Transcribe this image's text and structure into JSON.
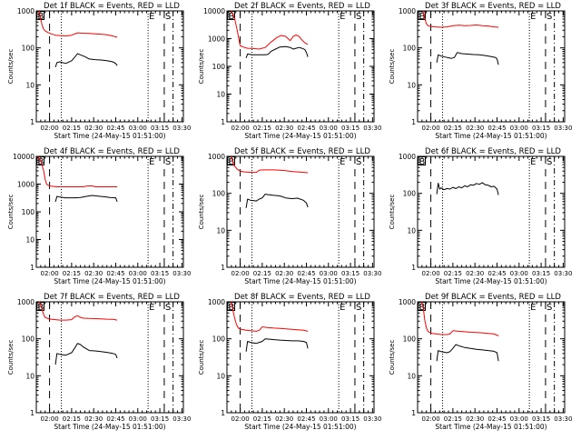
{
  "chart_data": {
    "type": "line",
    "layout": "3x3 grid of log-scale time-series panels",
    "shared": {
      "xlabel": "Start Time (24-May-15 01:51:00)",
      "ylabel": "Counts/sec",
      "x_range_minutes_from_start": [
        0,
        100
      ],
      "x_tick_labels": [
        "02:00",
        "02:15",
        "02:30",
        "02:45",
        "03:00",
        "03:15",
        "03:30"
      ],
      "x_tick_minutes": [
        9,
        24,
        39,
        54,
        69,
        84,
        99
      ],
      "series_names": [
        "Events",
        "LLD"
      ],
      "series_colors": {
        "Events": "#000000",
        "LLD": "#ff0000"
      },
      "markers": [
        {
          "label": "B",
          "minute": 0,
          "style": "box"
        },
        {
          "label": "",
          "minute": 9,
          "style": "dashed"
        },
        {
          "label": "",
          "minute": 17,
          "style": "dotted"
        },
        {
          "label": "E",
          "minute": 76,
          "style": "dotted"
        },
        {
          "label": "S",
          "minute": 87,
          "style": "dashed"
        },
        {
          "label": "",
          "minute": 93,
          "style": "dashdot"
        }
      ]
    },
    "panels": [
      {
        "title": "Det 1f BLACK = Events, RED = LLD",
        "ylim": [
          1,
          1000
        ],
        "y_tick_labels": [
          "1",
          "10",
          "100",
          "1000"
        ],
        "series": [
          {
            "name": "LLD",
            "x": [
              2,
              3,
              4,
              5,
              6,
              8,
              10,
              13,
              16,
              20,
              24,
              28,
              32,
              36,
              40,
              44,
              48,
              52,
              55
            ],
            "y": [
              1000,
              600,
              400,
              320,
              290,
              260,
              240,
              220,
              215,
              210,
              220,
              255,
              250,
              245,
              240,
              235,
              225,
              210,
              195
            ]
          },
          {
            "name": "Events",
            "x": [
              13,
              14,
              16,
              20,
              24,
              26,
              28,
              30,
              33,
              36,
              40,
              44,
              48,
              52,
              54,
              55
            ],
            "y": [
              30,
              40,
              42,
              38,
              45,
              55,
              70,
              65,
              58,
              50,
              48,
              47,
              45,
              42,
              38,
              33
            ]
          }
        ]
      },
      {
        "title": "Det 2f BLACK = Events, RED = LLD",
        "ylim": [
          1,
          10000
        ],
        "y_tick_labels": [
          "1",
          "10",
          "100",
          "1000",
          "10000"
        ],
        "series": [
          {
            "name": "LLD",
            "x": [
              3,
              5,
              7,
              8,
              9,
              11,
              14,
              18,
              22,
              26,
              30,
              34,
              37,
              40,
              43,
              45,
              47,
              49,
              51,
              53,
              55
            ],
            "y": [
              10000,
              6000,
              2000,
              1000,
              550,
              500,
              450,
              440,
              420,
              480,
              750,
              1100,
              1300,
              1200,
              850,
              1200,
              1350,
              1200,
              900,
              700,
              620
            ]
          },
          {
            "name": "Events",
            "x": [
              13,
              14,
              17,
              22,
              26,
              28,
              30,
              33,
              36,
              40,
              43,
              45,
              47,
              49,
              51,
              53,
              54,
              55
            ],
            "y": [
              200,
              280,
              260,
              260,
              260,
              270,
              350,
              420,
              500,
              520,
              480,
              420,
              450,
              480,
              450,
              400,
              320,
              220
            ]
          }
        ]
      },
      {
        "title": "Det 3f BLACK = Events, RED = LLD",
        "ylim": [
          1,
          1000
        ],
        "y_tick_labels": [
          "1",
          "10",
          "100",
          "1000"
        ],
        "series": [
          {
            "name": "LLD",
            "x": [
              4,
              5,
              6,
              7,
              9,
              12,
              16,
              20,
              24,
              28,
              32,
              36,
              40,
              44,
              48,
              52,
              55
            ],
            "y": [
              1000,
              600,
              450,
              400,
              380,
              370,
              360,
              370,
              400,
              410,
              400,
              405,
              415,
              400,
              390,
              370,
              360
            ]
          },
          {
            "name": "Events",
            "x": [
              13,
              14,
              16,
              20,
              23,
              25,
              27,
              30,
              34,
              38,
              42,
              46,
              50,
              53,
              54,
              55
            ],
            "y": [
              40,
              65,
              60,
              55,
              52,
              55,
              75,
              70,
              68,
              66,
              65,
              62,
              58,
              55,
              50,
              35
            ]
          }
        ]
      },
      {
        "title": "Det 4f BLACK = Events, RED = LLD",
        "ylim": [
          1,
          10000
        ],
        "y_tick_labels": [
          "1",
          "10",
          "100",
          "1000",
          "10000"
        ],
        "series": [
          {
            "name": "LLD",
            "x": [
              1,
              3,
              5,
              6,
              7,
              8,
              10,
              14,
              20,
              26,
              32,
              34,
              38,
              40,
              44,
              48,
              52,
              55
            ],
            "y": [
              10000,
              7000,
              3000,
              1500,
              1000,
              900,
              850,
              800,
              800,
              800,
              800,
              850,
              870,
              800,
              800,
              800,
              800,
              800
            ]
          },
          {
            "name": "Events",
            "x": [
              13,
              14,
              16,
              20,
              26,
              30,
              34,
              38,
              42,
              46,
              50,
              54,
              55
            ],
            "y": [
              230,
              360,
              340,
              320,
              320,
              330,
              360,
              390,
              370,
              350,
              330,
              320,
              230
            ]
          }
        ]
      },
      {
        "title": "Det 5f BLACK = Events, RED = LLD",
        "ylim": [
          1,
          1000
        ],
        "y_tick_labels": [
          "1",
          "10",
          "100",
          "1000"
        ],
        "series": [
          {
            "name": "LLD",
            "x": [
              3,
              4,
              5,
              6,
              7,
              8,
              9,
              12,
              16,
              20,
              22,
              24,
              28,
              32,
              36,
              40,
              44,
              48,
              52,
              55
            ],
            "y": [
              1000,
              700,
              550,
              500,
              450,
              420,
              400,
              380,
              370,
              370,
              420,
              430,
              430,
              430,
              420,
              410,
              390,
              380,
              370,
              360
            ]
          },
          {
            "name": "Events",
            "x": [
              13,
              14,
              16,
              20,
              22,
              24,
              26,
              28,
              32,
              36,
              40,
              44,
              48,
              52,
              54,
              55
            ],
            "y": [
              40,
              70,
              65,
              62,
              70,
              75,
              95,
              92,
              88,
              85,
              75,
              72,
              74,
              65,
              55,
              42
            ]
          }
        ]
      },
      {
        "title": "Det 6f BLACK = Events, RED = LLD",
        "ylim": [
          1,
          1000
        ],
        "y_tick_labels": [
          "1",
          "10",
          "100",
          "1000"
        ],
        "series": [
          {
            "name": "Events",
            "x": [
              13,
              14,
              15,
              16,
              18,
              20,
              22,
              24,
              26,
              28,
              30,
              32,
              34,
              36,
              38,
              40,
              42,
              44,
              46,
              48,
              50,
              52,
              54,
              55
            ],
            "y": [
              95,
              190,
              130,
              140,
              125,
              135,
              130,
              145,
              135,
              150,
              140,
              160,
              150,
              170,
              165,
              185,
              175,
              195,
              170,
              165,
              150,
              155,
              130,
              90
            ]
          }
        ]
      },
      {
        "title": "Det 7f BLACK = Events, RED = LLD",
        "ylim": [
          1,
          1000
        ],
        "y_tick_labels": [
          "1",
          "10",
          "100",
          "1000"
        ],
        "series": [
          {
            "name": "LLD",
            "x": [
              2,
              3,
              4,
              5,
              6,
              8,
              10,
              13,
              16,
              20,
              24,
              26,
              28,
              30,
              32,
              36,
              40,
              44,
              48,
              52,
              55
            ],
            "y": [
              1000,
              800,
              600,
              450,
              380,
              350,
              340,
              330,
              320,
              320,
              330,
              390,
              420,
              380,
              360,
              355,
              350,
              345,
              340,
              335,
              320
            ]
          },
          {
            "name": "Events",
            "x": [
              13,
              14,
              16,
              20,
              24,
              26,
              28,
              30,
              32,
              36,
              40,
              44,
              48,
              52,
              54,
              55
            ],
            "y": [
              20,
              40,
              38,
              36,
              42,
              55,
              75,
              70,
              60,
              48,
              47,
              45,
              43,
              40,
              38,
              30
            ]
          }
        ]
      },
      {
        "title": "Det 8f BLACK = Events, RED = LLD",
        "ylim": [
          1,
          1000
        ],
        "y_tick_labels": [
          "1",
          "10",
          "100",
          "1000"
        ],
        "series": [
          {
            "name": "LLD",
            "x": [
              3,
              4,
              5,
              6,
              7,
              8,
              10,
              13,
              16,
              20,
              22,
              24,
              28,
              32,
              36,
              40,
              44,
              48,
              52,
              55
            ],
            "y": [
              1000,
              600,
              400,
              280,
              220,
              190,
              180,
              170,
              165,
              160,
              170,
              210,
              200,
              195,
              190,
              185,
              180,
              175,
              170,
              160
            ]
          },
          {
            "name": "Events",
            "x": [
              13,
              14,
              16,
              20,
              22,
              24,
              26,
              28,
              32,
              36,
              40,
              44,
              48,
              52,
              54,
              55
            ],
            "y": [
              45,
              85,
              80,
              75,
              80,
              85,
              100,
              98,
              95,
              92,
              90,
              88,
              88,
              85,
              80,
              55
            ]
          }
        ]
      },
      {
        "title": "Det 9f BLACK = Events, RED = LLD",
        "ylim": [
          1,
          1000
        ],
        "y_tick_labels": [
          "1",
          "10",
          "100",
          "1000"
        ],
        "series": [
          {
            "name": "LLD",
            "x": [
              3,
              4,
              5,
              6,
              7,
              8,
              10,
              13,
              16,
              20,
              22,
              24,
              28,
              32,
              36,
              40,
              44,
              48,
              52,
              55
            ],
            "y": [
              1000,
              600,
              300,
              200,
              160,
              150,
              140,
              135,
              130,
              130,
              135,
              165,
              160,
              155,
              150,
              148,
              145,
              140,
              135,
              120
            ]
          },
          {
            "name": "Events",
            "x": [
              13,
              14,
              16,
              20,
              22,
              24,
              26,
              28,
              32,
              36,
              40,
              44,
              48,
              52,
              54,
              55
            ],
            "y": [
              25,
              48,
              45,
              42,
              45,
              55,
              70,
              65,
              58,
              55,
              52,
              50,
              48,
              46,
              42,
              25
            ]
          }
        ]
      }
    ]
  }
}
